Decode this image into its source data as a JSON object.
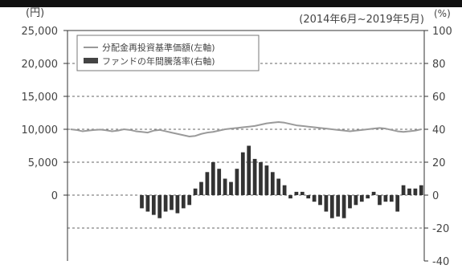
{
  "chart_data": {
    "type": "bar+line",
    "period": "(2014年6月~2019年5月)",
    "left_unit": "(円)",
    "right_unit": "(%)",
    "left_axis": {
      "ticks": [
        0,
        5000,
        10000,
        15000,
        20000,
        25000
      ],
      "tick_labels": [
        "0",
        "5,000",
        "10,000",
        "15,000",
        "20,000",
        "25,000"
      ],
      "ylim": [
        -10000,
        25000
      ]
    },
    "right_axis": {
      "ticks": [
        -40,
        -20,
        0,
        20,
        40,
        60,
        80,
        100
      ],
      "tick_labels": [
        "-40",
        "-20",
        "0",
        "20",
        "40",
        "60",
        "80",
        "100"
      ],
      "ylim": [
        -40,
        100
      ]
    },
    "legend": {
      "position": "top-left",
      "line_label": "分配金再投資基準価額(左軸)",
      "bar_label": "ファンドの年間騰落率(右軸)"
    },
    "grid": "dashed horizontal",
    "series": [
      {
        "name": "分配金再投資基準価額(左軸)",
        "kind": "line",
        "axis": "left",
        "values": [
          10000,
          9900,
          9700,
          9800,
          9900,
          9950,
          9850,
          9700,
          9800,
          10000,
          9900,
          9700,
          9600,
          9500,
          9800,
          9900,
          9700,
          9500,
          9300,
          9100,
          8900,
          9000,
          9300,
          9500,
          9600,
          9800,
          10000,
          10100,
          10200,
          10300,
          10400,
          10500,
          10700,
          10900,
          11000,
          11100,
          11000,
          10800,
          10600,
          10500,
          10400,
          10300,
          10200,
          10100,
          10000,
          9900,
          9800,
          9700,
          9800,
          9900,
          10000,
          10100,
          10200,
          10100,
          9900,
          9700,
          9600,
          9700,
          9800,
          10000
        ]
      },
      {
        "name": "ファンドの年間騰落率(右軸)",
        "kind": "bar",
        "axis": "right",
        "start_index": 12,
        "values": [
          -8,
          -10,
          -12,
          -14,
          -10,
          -9,
          -11,
          -8,
          -6,
          4,
          8,
          14,
          20,
          16,
          10,
          8,
          16,
          26,
          30,
          22,
          20,
          18,
          14,
          10,
          6,
          -2,
          2,
          2,
          -2,
          -4,
          -6,
          -10,
          -14,
          -13,
          -14,
          -8,
          -6,
          -4,
          -2,
          2,
          -6,
          -4,
          -4,
          -10,
          6,
          4,
          4,
          6
        ]
      }
    ]
  }
}
